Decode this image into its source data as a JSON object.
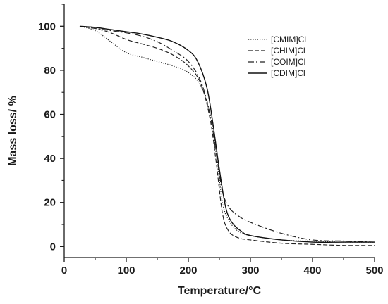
{
  "chart_data": {
    "type": "line",
    "xlabel": "Temperature/°C",
    "ylabel": "Mass loss/ %",
    "xlim": [
      0,
      500
    ],
    "ylim": [
      -5,
      110
    ],
    "xticks": [
      0,
      100,
      200,
      300,
      400,
      500
    ],
    "yticks": [
      0,
      20,
      40,
      60,
      80,
      100
    ],
    "grid": false,
    "legend_position": "top-right",
    "series": [
      {
        "name": "[CMIM]Cl",
        "style": "dotted",
        "color": "#222222",
        "x": [
          25,
          50,
          75,
          100,
          125,
          150,
          175,
          200,
          220,
          235,
          245,
          255,
          265,
          280,
          300,
          350,
          400,
          450,
          500
        ],
        "y": [
          100,
          98,
          93,
          88,
          86,
          84,
          82,
          79,
          73,
          60,
          42,
          20,
          12,
          7,
          5,
          3,
          2.5,
          2,
          2
        ]
      },
      {
        "name": "[CHIM]Cl",
        "style": "dashed",
        "color": "#222222",
        "x": [
          25,
          50,
          75,
          100,
          125,
          150,
          175,
          200,
          220,
          235,
          245,
          255,
          265,
          280,
          300,
          350,
          400,
          450,
          500
        ],
        "y": [
          100,
          99,
          97,
          94,
          92,
          90,
          87,
          82,
          74,
          58,
          38,
          15,
          7,
          4,
          3,
          1.5,
          1,
          0.5,
          0.5
        ]
      },
      {
        "name": "[COIM]Cl",
        "style": "dashdot",
        "color": "#222222",
        "x": [
          25,
          50,
          75,
          100,
          125,
          150,
          175,
          200,
          220,
          235,
          245,
          255,
          265,
          280,
          300,
          350,
          400,
          450,
          500
        ],
        "y": [
          100,
          99,
          98,
          97,
          95.5,
          93,
          89,
          84,
          75,
          60,
          42,
          25,
          18,
          14,
          11,
          6,
          3,
          2.5,
          2
        ]
      },
      {
        "name": "[CDIM]Cl",
        "style": "solid",
        "color": "#111111",
        "x": [
          25,
          50,
          75,
          100,
          125,
          150,
          175,
          200,
          215,
          230,
          240,
          250,
          260,
          270,
          285,
          300,
          350,
          400,
          450,
          500
        ],
        "y": [
          100,
          99.5,
          98.5,
          97.5,
          96.5,
          95,
          93,
          89,
          84,
          72,
          55,
          35,
          18,
          11,
          7,
          5,
          3,
          2,
          2,
          2
        ]
      }
    ]
  }
}
